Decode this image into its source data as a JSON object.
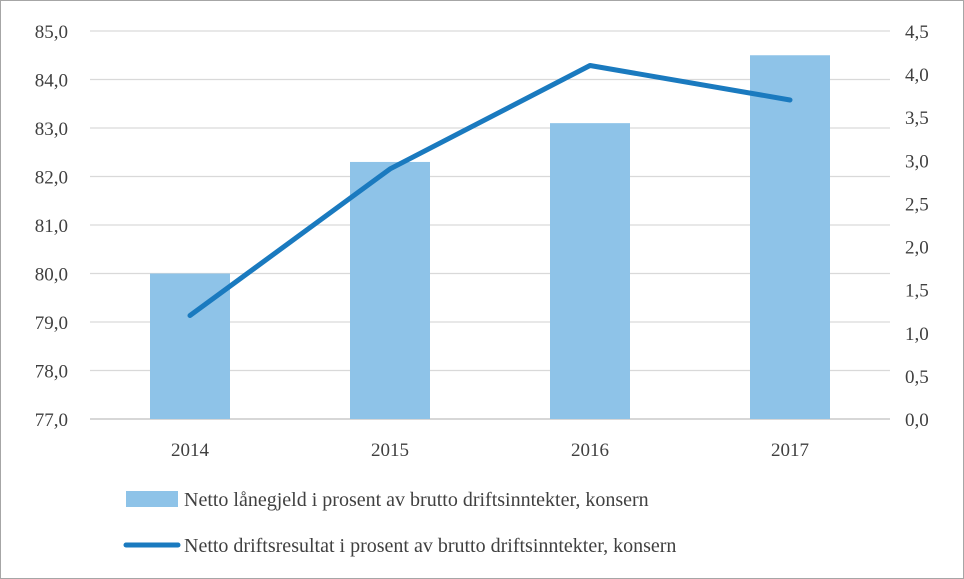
{
  "chart_data": {
    "type": "bar+line",
    "categories": [
      "2014",
      "2015",
      "2016",
      "2017"
    ],
    "series": [
      {
        "name": "Netto lånegjeld i prosent av brutto driftsinntekter, konsern",
        "type": "bar",
        "axis": "left",
        "color": "#8ec3e8",
        "values": [
          80.0,
          82.3,
          83.1,
          84.5
        ]
      },
      {
        "name": "Netto driftsresultat i prosent av brutto driftsinntekter, konsern",
        "type": "line",
        "axis": "right",
        "color": "#1a7abf",
        "values": [
          1.2,
          2.9,
          4.1,
          3.7
        ]
      }
    ],
    "y_left": {
      "min": 77,
      "max": 85,
      "step": 1,
      "tick_labels": [
        "77,0",
        "78,0",
        "79,0",
        "80,0",
        "81,0",
        "82,0",
        "83,0",
        "84,0",
        "85,0"
      ]
    },
    "y_right": {
      "min": 0,
      "max": 4.5,
      "step": 0.5,
      "tick_labels": [
        "0,0",
        "0,5",
        "1,0",
        "1,5",
        "2,0",
        "2,5",
        "3,0",
        "3,5",
        "4,0",
        "4,5"
      ]
    },
    "gridlines": true,
    "gridline_color": "#d9d9d9",
    "legend_position": "bottom",
    "title": "",
    "xlabel": "",
    "ylabel": ""
  }
}
